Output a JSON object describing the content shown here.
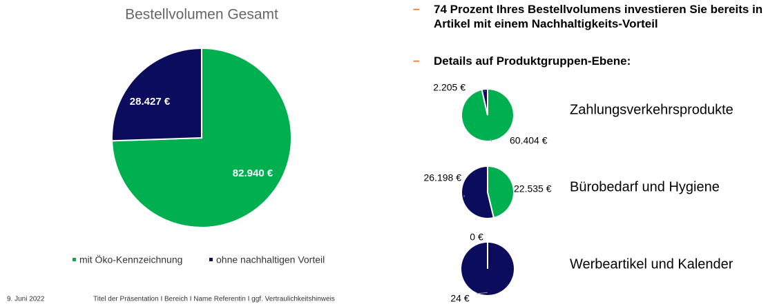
{
  "chart_data": [
    {
      "type": "pie",
      "title": "Bestellvolumen Gesamt",
      "categories": [
        "mit Öko-Kennzeichnung",
        "ohne nachhaltigen Vorteil"
      ],
      "values": [
        82940,
        28427
      ],
      "value_labels": [
        "82.940 €",
        "28.427 €"
      ],
      "colors": [
        "#00b050",
        "#0c0c5c"
      ],
      "legend": "bottom"
    },
    {
      "type": "pie",
      "title": "Zahlungsverkehrsprodukte",
      "values": [
        60404,
        2205
      ],
      "value_labels": [
        "60.404 €",
        "2.205 €"
      ],
      "colors": [
        "#00b050",
        "#0c0c5c"
      ]
    },
    {
      "type": "pie",
      "title": "Bürobedarf und Hygiene",
      "values": [
        22535,
        26198
      ],
      "value_labels": [
        "22.535 €",
        "26.198 €"
      ],
      "colors": [
        "#00b050",
        "#0c0c5c"
      ]
    },
    {
      "type": "pie",
      "title": "Werbeartikel und Kalender",
      "values": [
        0,
        24
      ],
      "value_labels": [
        "0 €",
        "24 €"
      ],
      "colors": [
        "#00b050",
        "#0c0c5c"
      ]
    }
  ],
  "bullets": [
    "74 Prozent Ihres Bestellvolumens investieren Sie bereits in Artikel mit einem Nachhaltigkeits-Vorteil",
    "Details auf Produktgruppen-Ebene:"
  ],
  "footer": {
    "date": "9. Juni 2022",
    "text": "Titel der Präsentation I Bereich I Name Referentin I ggf. Vertraulichkeitshinweis"
  }
}
